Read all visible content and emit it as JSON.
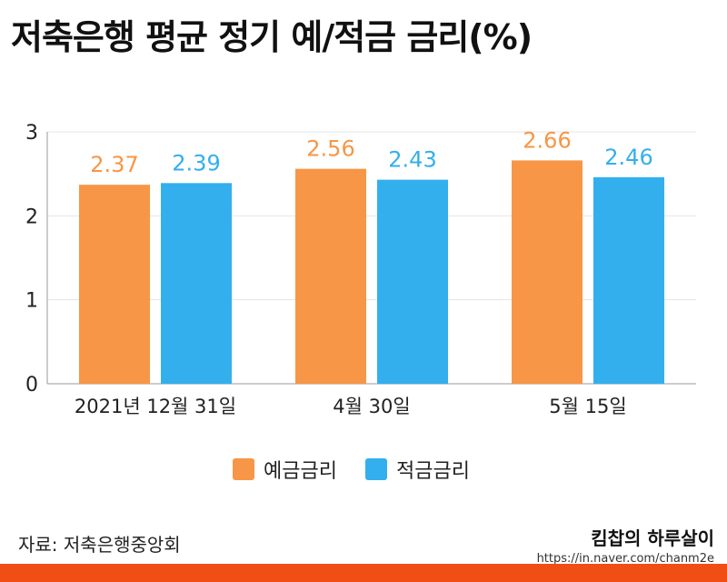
{
  "title": "저축은행 평균 정기 예/적금 금리(%)",
  "source_label": "자료: 저축은행중앙회",
  "brand": {
    "name": "킴찹의 하루살이",
    "url": "https://in.naver.com/chanm2e"
  },
  "colors": {
    "deposit": "#f79646",
    "savings": "#33afee",
    "bottom_bar": "#f04e14",
    "grid": "#e4e4e4",
    "axis": "#9a9a9a"
  },
  "chart_data": {
    "type": "bar",
    "categories": [
      "2021년 12월 31일",
      "4월 30일",
      "5월 15일"
    ],
    "series": [
      {
        "name": "예금금리",
        "values": [
          2.37,
          2.56,
          2.66
        ]
      },
      {
        "name": "적금금리",
        "values": [
          2.39,
          2.43,
          2.46
        ]
      }
    ],
    "ylim": [
      0,
      3
    ],
    "yticks": [
      "0",
      "1",
      "2",
      "3"
    ],
    "data_labels": [
      [
        "2.37",
        "2.56",
        "2.66"
      ],
      [
        "2.39",
        "2.43",
        "2.46"
      ]
    ],
    "grid": true,
    "legend": "bottom"
  }
}
